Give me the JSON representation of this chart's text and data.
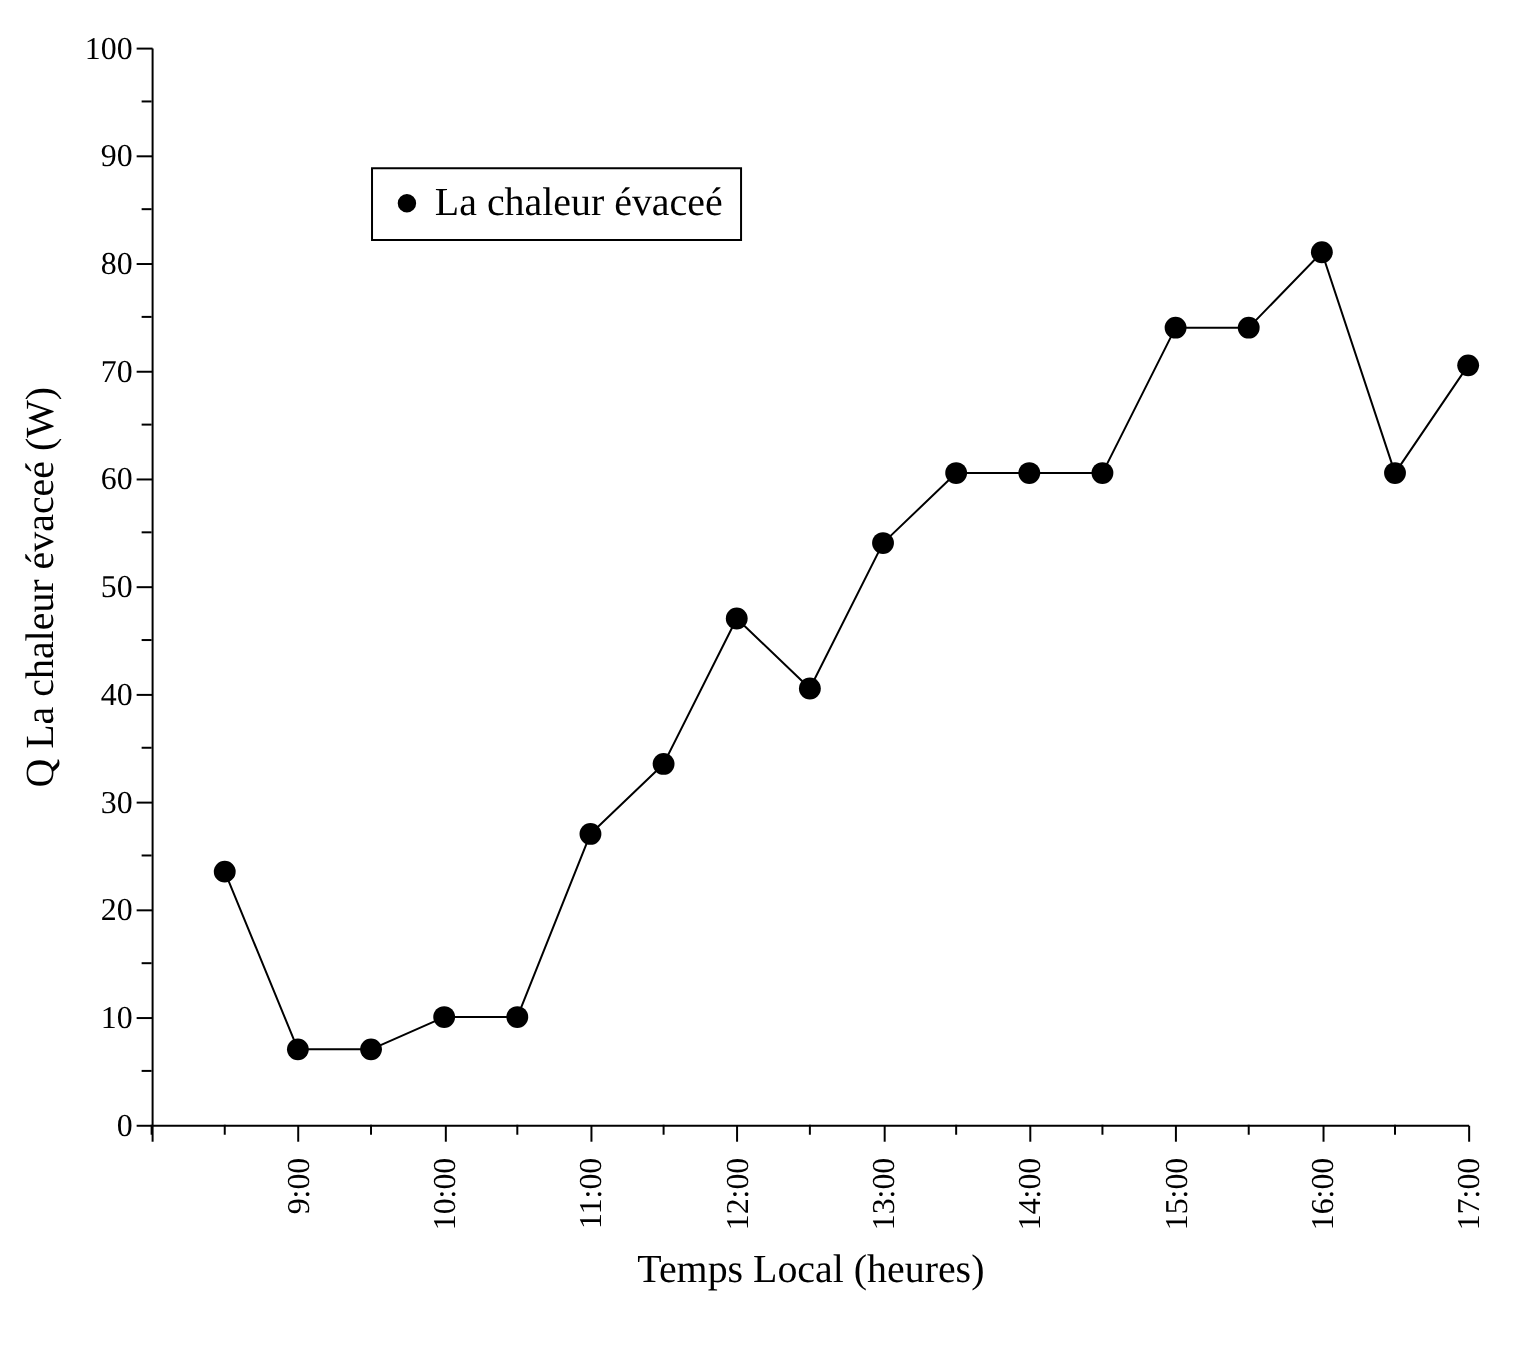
{
  "chart_data": {
    "type": "line",
    "xlabel": "Temps Local (heures)",
    "ylabel": "Q La chaleur évaceé (W)",
    "x": [
      8.5,
      9,
      9.5,
      10,
      10.5,
      11,
      11.5,
      12,
      12.5,
      13,
      13.5,
      14,
      14.5,
      15,
      15.5,
      16,
      16.5,
      17
    ],
    "series": [
      {
        "name": "La chaleur évaceé",
        "color": "#000000",
        "values": [
          23.5,
          7,
          7,
          10,
          10,
          27,
          33.5,
          47,
          40.5,
          54,
          60.5,
          60.5,
          60.5,
          74,
          74,
          81,
          60.5,
          70.5
        ]
      }
    ],
    "xlim": [
      8,
      17
    ],
    "xticks": [
      {
        "value": 8,
        "label": null
      },
      {
        "value": 8.5,
        "label": null
      },
      {
        "value": 9,
        "label": "9:00"
      },
      {
        "value": 9.5,
        "label": null
      },
      {
        "value": 10,
        "label": "10:00"
      },
      {
        "value": 10.5,
        "label": null
      },
      {
        "value": 11,
        "label": "11:00"
      },
      {
        "value": 11.5,
        "label": null
      },
      {
        "value": 12,
        "label": "12:00"
      },
      {
        "value": 12.5,
        "label": null
      },
      {
        "value": 13,
        "label": "13:00"
      },
      {
        "value": 13.5,
        "label": null
      },
      {
        "value": 14,
        "label": "14:00"
      },
      {
        "value": 14.5,
        "label": null
      },
      {
        "value": 15,
        "label": "15:00"
      },
      {
        "value": 15.5,
        "label": null
      },
      {
        "value": 16,
        "label": "16:00"
      },
      {
        "value": 16.5,
        "label": null
      },
      {
        "value": 17,
        "label": "17:00"
      }
    ],
    "ylim": [
      0,
      100
    ],
    "yticks": [
      0,
      {
        "value": 5,
        "label": null
      },
      10,
      {
        "value": 15,
        "label": null
      },
      20,
      {
        "value": 25,
        "label": null
      },
      30,
      {
        "value": 35,
        "label": null
      },
      40,
      {
        "value": 45,
        "label": null
      },
      50,
      {
        "value": 55,
        "label": null
      },
      60,
      {
        "value": 65,
        "label": null
      },
      70,
      {
        "value": 75,
        "label": null
      },
      80,
      {
        "value": 85,
        "label": null
      },
      90,
      {
        "value": 95,
        "label": null
      },
      100
    ],
    "marker": "circle",
    "line_style": "solid",
    "legend": "top left",
    "grid": false
  }
}
